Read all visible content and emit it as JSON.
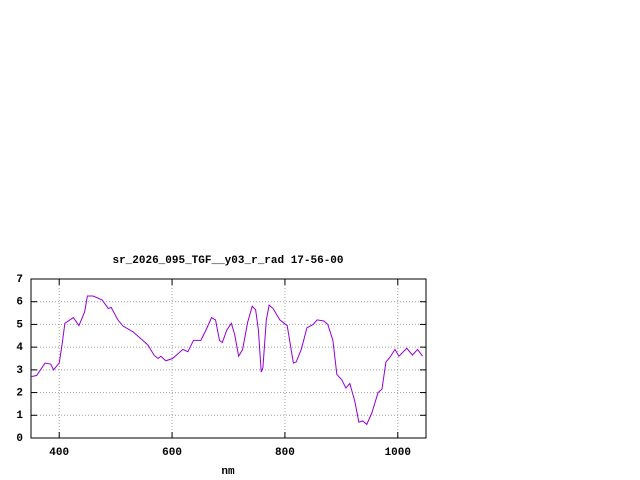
{
  "chart_data": {
    "type": "line",
    "title": "sr_2026_095_TGF__y03_r_rad 17-56-00",
    "x_label": "nm",
    "xlim": [
      350,
      1050
    ],
    "ylim": [
      0,
      7
    ],
    "xticks": [
      400,
      600,
      800,
      1000
    ],
    "yticks": [
      0,
      1,
      2,
      3,
      4,
      5,
      6,
      7
    ],
    "grid": true,
    "x": [
      350,
      360,
      375,
      385,
      390,
      400,
      405,
      410,
      425,
      435,
      445,
      450,
      460,
      476,
      487,
      492,
      504,
      513,
      531,
      548,
      557,
      568,
      575,
      580,
      589,
      601,
      619,
      628,
      638,
      651,
      660,
      670,
      677,
      684,
      689,
      697,
      705,
      711,
      718,
      725,
      734,
      742,
      748,
      753,
      758,
      761,
      767,
      772,
      779,
      791,
      804,
      815,
      820,
      829,
      839,
      850,
      857,
      869,
      876,
      885,
      892,
      901,
      908,
      915,
      924,
      931,
      938,
      945,
      954,
      965,
      972,
      979,
      986,
      995,
      1002,
      1016,
      1026,
      1035,
      1044
    ],
    "series": [
      {
        "color": "#9400d3",
        "values": [
          2.7,
          2.75,
          3.3,
          3.25,
          3.0,
          3.3,
          4.1,
          5.05,
          5.3,
          4.95,
          5.55,
          6.25,
          6.25,
          6.08,
          5.7,
          5.75,
          5.2,
          4.93,
          4.67,
          4.3,
          4.1,
          3.65,
          3.5,
          3.6,
          3.4,
          3.5,
          3.9,
          3.8,
          4.3,
          4.3,
          4.75,
          5.3,
          5.2,
          4.3,
          4.2,
          4.75,
          5.05,
          4.55,
          3.6,
          3.9,
          5.1,
          5.8,
          5.65,
          4.75,
          2.9,
          3.1,
          5.2,
          5.85,
          5.7,
          5.2,
          4.95,
          3.3,
          3.35,
          3.9,
          4.85,
          5.0,
          5.2,
          5.15,
          5.0,
          4.3,
          2.8,
          2.55,
          2.2,
          2.4,
          1.6,
          0.7,
          0.75,
          0.6,
          1.1,
          2.0,
          2.15,
          3.35,
          3.55,
          3.9,
          3.6,
          3.95,
          3.65,
          3.9,
          3.6
        ]
      }
    ]
  }
}
